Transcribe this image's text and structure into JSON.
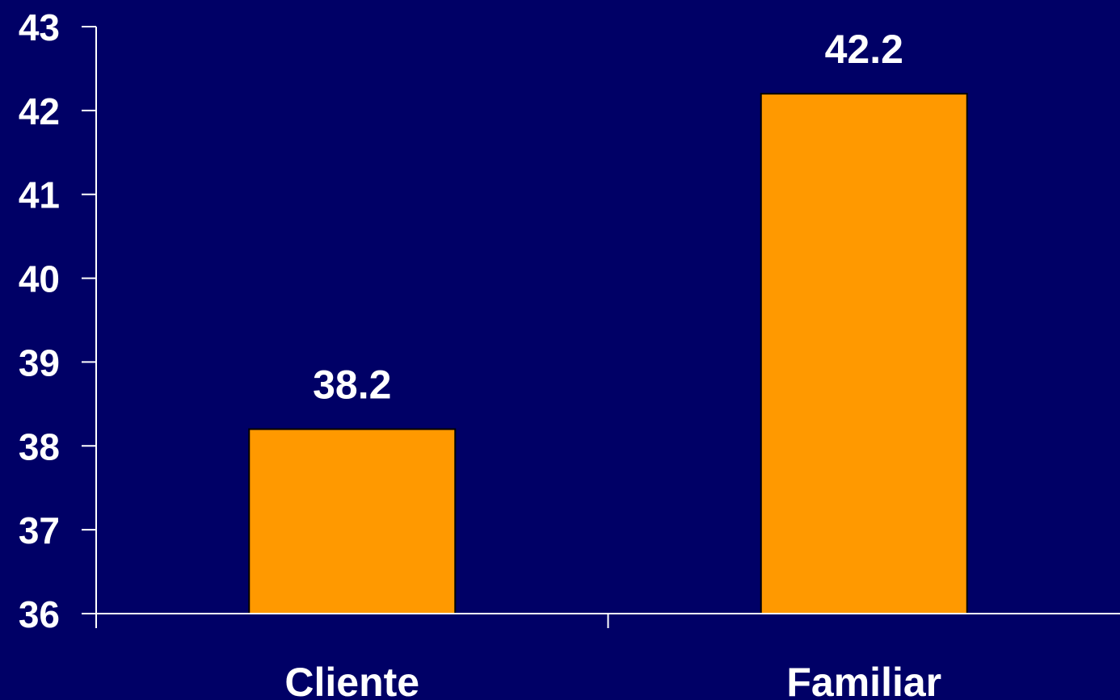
{
  "chart_data": {
    "type": "bar",
    "categories": [
      "Cliente",
      "Familiar"
    ],
    "values": [
      38.2,
      42.2
    ],
    "data_labels": [
      "38.2",
      "42.2"
    ],
    "ylim": [
      36,
      43
    ],
    "yticks": [
      "36",
      "37",
      "38",
      "39",
      "40",
      "41",
      "42",
      "43"
    ],
    "title": "",
    "xlabel": "",
    "ylabel": "",
    "grid": false,
    "legend": "none"
  },
  "colors": {
    "background": "#000066",
    "bar_fill": "#ff9900",
    "bar_stroke": "#000000",
    "axis": "#ffffff",
    "text": "#ffffff"
  }
}
